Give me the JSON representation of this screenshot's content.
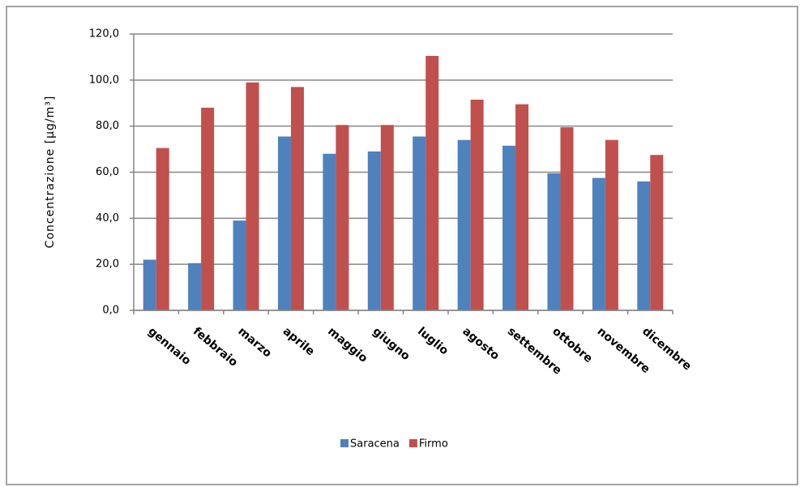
{
  "chart_data": {
    "type": "bar",
    "y_label": "Concentrazione [µg/m³]",
    "categories": [
      "gennaio",
      "febbraio",
      "marzo",
      "aprile",
      "maggio",
      "giugno",
      "luglio",
      "agosto",
      "settembre",
      "ottobre",
      "novembre",
      "dicembre"
    ],
    "series": [
      {
        "name": "Saracena",
        "color": "#4f81bd",
        "values": [
          22,
          20.5,
          39,
          75.5,
          68,
          69,
          75.5,
          74,
          71.5,
          59.5,
          57.5,
          56
        ]
      },
      {
        "name": "Firmo",
        "color": "#c0504d",
        "values": [
          70.5,
          88,
          99,
          97,
          80.5,
          80.5,
          110.5,
          91.5,
          89.5,
          79.5,
          74,
          67.5
        ]
      }
    ],
    "ylim": [
      0,
      120
    ],
    "yticks": [
      {
        "value": 0,
        "label": "0,0"
      },
      {
        "value": 20,
        "label": "20,0"
      },
      {
        "value": 40,
        "label": "40,0"
      },
      {
        "value": 60,
        "label": "60,0"
      },
      {
        "value": 80,
        "label": "80,0"
      },
      {
        "value": 100,
        "label": "100,0"
      },
      {
        "value": 120,
        "label": "120,0"
      }
    ],
    "grid": true
  }
}
